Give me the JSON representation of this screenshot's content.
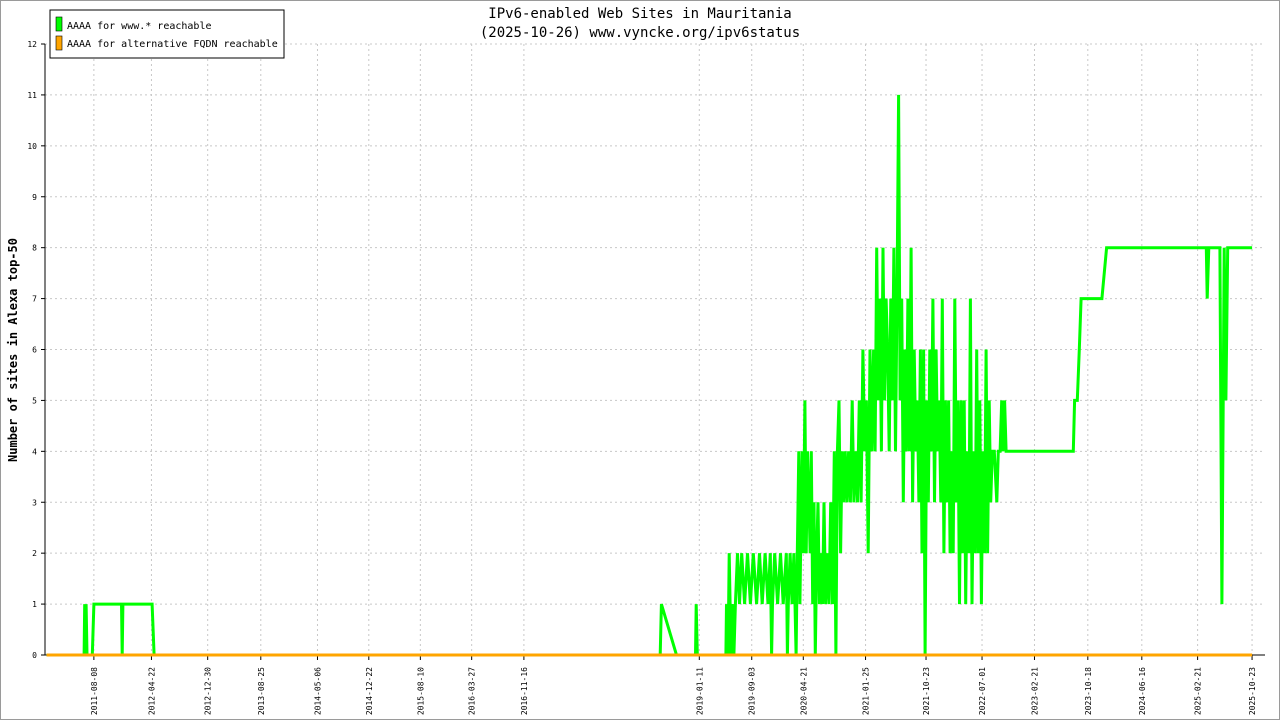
{
  "chart_data": {
    "type": "line",
    "title": "IPv6-enabled Web Sites in Mauritania",
    "subtitle": "(2025-10-26) www.vyncke.org/ipv6status",
    "ylabel": "Number of sites in Alexa top-50",
    "xlabel": "",
    "ylim": [
      0,
      12
    ],
    "yticks": [
      "0",
      "1",
      "2",
      "3",
      "4",
      "5",
      "6",
      "7",
      "8",
      "9",
      "10",
      "11",
      "12"
    ],
    "grid": true,
    "legend_position": "top-left",
    "xlim": [
      "2011-01-01",
      "2025-12-20"
    ],
    "xticks": [
      "2011-08-08",
      "2012-04-22",
      "2012-12-30",
      "2013-08-25",
      "2014-05-06",
      "2014-12-22",
      "2015-08-10",
      "2016-03-27",
      "2016-11-16",
      "2019-01-11",
      "2019-09-03",
      "2020-04-21",
      "2021-01-25",
      "2021-10-23",
      "2022-07-01",
      "2023-02-21",
      "2023-10-18",
      "2024-06-16",
      "2025-02-21",
      "2025-10-23"
    ],
    "series": [
      {
        "name": "AAAA for www.* reachable",
        "color": "#00ff00",
        "points": [
          [
            "2011-01-08",
            0
          ],
          [
            "2011-06-25",
            0
          ],
          [
            "2011-06-28",
            1
          ],
          [
            "2011-07-01",
            0
          ],
          [
            "2011-07-04",
            1
          ],
          [
            "2011-07-08",
            0
          ],
          [
            "2011-08-01",
            0
          ],
          [
            "2011-08-08",
            1
          ],
          [
            "2011-12-10",
            1
          ],
          [
            "2011-12-13",
            0
          ],
          [
            "2011-12-16",
            1
          ],
          [
            "2012-04-25",
            1
          ],
          [
            "2012-05-04",
            0
          ],
          [
            "2018-07-20",
            0
          ],
          [
            "2018-07-25",
            1
          ],
          [
            "2018-10-01",
            0
          ],
          [
            "2018-12-25",
            0
          ],
          [
            "2018-12-28",
            1
          ],
          [
            "2019-01-02",
            0
          ],
          [
            "2019-05-10",
            0
          ],
          [
            "2019-05-13",
            1
          ],
          [
            "2019-05-20",
            0
          ],
          [
            "2019-05-25",
            2
          ],
          [
            "2019-06-02",
            0
          ],
          [
            "2019-06-08",
            1
          ],
          [
            "2019-06-15",
            0
          ],
          [
            "2019-06-22",
            1
          ],
          [
            "2019-07-01",
            2
          ],
          [
            "2019-07-10",
            1
          ],
          [
            "2019-07-20",
            2
          ],
          [
            "2019-08-02",
            1
          ],
          [
            "2019-08-15",
            2
          ],
          [
            "2019-08-28",
            1
          ],
          [
            "2019-09-10",
            2
          ],
          [
            "2019-09-25",
            1
          ],
          [
            "2019-10-08",
            2
          ],
          [
            "2019-10-20",
            1
          ],
          [
            "2019-11-02",
            2
          ],
          [
            "2019-11-15",
            1
          ],
          [
            "2019-11-25",
            2
          ],
          [
            "2019-12-01",
            0
          ],
          [
            "2019-12-05",
            1
          ],
          [
            "2019-12-15",
            2
          ],
          [
            "2019-12-28",
            1
          ],
          [
            "2020-01-10",
            2
          ],
          [
            "2020-01-22",
            1
          ],
          [
            "2020-02-05",
            2
          ],
          [
            "2020-02-10",
            0
          ],
          [
            "2020-02-14",
            1
          ],
          [
            "2020-02-22",
            2
          ],
          [
            "2020-03-02",
            1
          ],
          [
            "2020-03-10",
            2
          ],
          [
            "2020-03-20",
            0
          ],
          [
            "2020-03-25",
            2
          ],
          [
            "2020-04-01",
            4
          ],
          [
            "2020-04-06",
            1
          ],
          [
            "2020-04-12",
            3
          ],
          [
            "2020-04-16",
            4
          ],
          [
            "2020-04-21",
            2
          ],
          [
            "2020-04-28",
            5
          ],
          [
            "2020-05-04",
            2
          ],
          [
            "2020-05-10",
            4
          ],
          [
            "2020-05-16",
            3
          ],
          [
            "2020-05-22",
            2
          ],
          [
            "2020-05-27",
            4
          ],
          [
            "2020-06-02",
            1
          ],
          [
            "2020-06-08",
            3
          ],
          [
            "2020-06-14",
            0
          ],
          [
            "2020-06-20",
            2
          ],
          [
            "2020-06-26",
            3
          ],
          [
            "2020-07-02",
            1
          ],
          [
            "2020-07-09",
            2
          ],
          [
            "2020-07-16",
            1
          ],
          [
            "2020-07-23",
            3
          ],
          [
            "2020-07-30",
            1
          ],
          [
            "2020-08-06",
            2
          ],
          [
            "2020-08-14",
            1
          ],
          [
            "2020-08-22",
            3
          ],
          [
            "2020-08-30",
            1
          ],
          [
            "2020-09-07",
            4
          ],
          [
            "2020-09-14",
            0
          ],
          [
            "2020-09-21",
            4
          ],
          [
            "2020-09-28",
            5
          ],
          [
            "2020-10-05",
            2
          ],
          [
            "2020-10-12",
            4
          ],
          [
            "2020-10-19",
            3
          ],
          [
            "2020-10-26",
            4
          ],
          [
            "2020-11-03",
            3
          ],
          [
            "2020-11-10",
            4
          ],
          [
            "2020-11-18",
            3
          ],
          [
            "2020-11-26",
            5
          ],
          [
            "2020-12-04",
            3
          ],
          [
            "2020-12-12",
            4
          ],
          [
            "2020-12-20",
            3
          ],
          [
            "2020-12-28",
            5
          ],
          [
            "2021-01-05",
            3
          ],
          [
            "2021-01-13",
            6
          ],
          [
            "2021-01-21",
            4
          ],
          [
            "2021-01-29",
            5
          ],
          [
            "2021-02-06",
            2
          ],
          [
            "2021-02-14",
            6
          ],
          [
            "2021-02-22",
            4
          ],
          [
            "2021-03-02",
            6
          ],
          [
            "2021-03-09",
            4
          ],
          [
            "2021-03-16",
            8
          ],
          [
            "2021-03-23",
            5
          ],
          [
            "2021-03-30",
            7
          ],
          [
            "2021-04-06",
            4
          ],
          [
            "2021-04-13",
            8
          ],
          [
            "2021-04-20",
            5
          ],
          [
            "2021-04-27",
            7
          ],
          [
            "2021-05-04",
            6
          ],
          [
            "2021-05-11",
            4
          ],
          [
            "2021-05-18",
            7
          ],
          [
            "2021-05-25",
            5
          ],
          [
            "2021-06-01",
            8
          ],
          [
            "2021-06-08",
            4
          ],
          [
            "2021-06-15",
            7
          ],
          [
            "2021-06-22",
            11
          ],
          [
            "2021-06-29",
            5
          ],
          [
            "2021-07-06",
            7
          ],
          [
            "2021-07-13",
            3
          ],
          [
            "2021-07-20",
            6
          ],
          [
            "2021-07-27",
            4
          ],
          [
            "2021-08-03",
            7
          ],
          [
            "2021-08-10",
            4
          ],
          [
            "2021-08-17",
            8
          ],
          [
            "2021-08-24",
            3
          ],
          [
            "2021-08-31",
            6
          ],
          [
            "2021-09-07",
            4
          ],
          [
            "2021-09-14",
            5
          ],
          [
            "2021-09-21",
            3
          ],
          [
            "2021-09-28",
            6
          ],
          [
            "2021-10-05",
            2
          ],
          [
            "2021-10-12",
            6
          ],
          [
            "2021-10-19",
            0
          ],
          [
            "2021-10-26",
            5
          ],
          [
            "2021-11-02",
            3
          ],
          [
            "2021-11-09",
            6
          ],
          [
            "2021-11-16",
            4
          ],
          [
            "2021-11-23",
            7
          ],
          [
            "2021-11-30",
            3
          ],
          [
            "2021-12-07",
            6
          ],
          [
            "2021-12-14",
            4
          ],
          [
            "2021-12-21",
            5
          ],
          [
            "2021-12-28",
            3
          ],
          [
            "2022-01-04",
            7
          ],
          [
            "2022-01-11",
            2
          ],
          [
            "2022-01-18",
            5
          ],
          [
            "2022-01-25",
            3
          ],
          [
            "2022-02-01",
            5
          ],
          [
            "2022-02-08",
            2
          ],
          [
            "2022-02-15",
            4
          ],
          [
            "2022-02-22",
            2
          ],
          [
            "2022-03-01",
            7
          ],
          [
            "2022-03-08",
            3
          ],
          [
            "2022-03-15",
            5
          ],
          [
            "2022-03-22",
            1
          ],
          [
            "2022-03-29",
            5
          ],
          [
            "2022-04-05",
            2
          ],
          [
            "2022-04-12",
            5
          ],
          [
            "2022-04-19",
            1
          ],
          [
            "2022-04-26",
            4
          ],
          [
            "2022-05-03",
            2
          ],
          [
            "2022-05-10",
            7
          ],
          [
            "2022-05-17",
            1
          ],
          [
            "2022-05-24",
            4
          ],
          [
            "2022-05-31",
            2
          ],
          [
            "2022-06-07",
            6
          ],
          [
            "2022-06-14",
            2
          ],
          [
            "2022-06-21",
            5
          ],
          [
            "2022-06-28",
            1
          ],
          [
            "2022-07-05",
            4
          ],
          [
            "2022-07-12",
            2
          ],
          [
            "2022-07-19",
            6
          ],
          [
            "2022-07-26",
            2
          ],
          [
            "2022-08-02",
            5
          ],
          [
            "2022-08-09",
            3
          ],
          [
            "2022-08-16",
            4
          ],
          [
            "2022-08-25",
            4
          ],
          [
            "2022-09-05",
            3
          ],
          [
            "2022-09-12",
            4
          ],
          [
            "2022-09-20",
            4
          ],
          [
            "2022-09-27",
            5
          ],
          [
            "2022-10-03",
            4
          ],
          [
            "2022-10-10",
            5
          ],
          [
            "2022-10-17",
            4
          ],
          [
            "2022-11-01",
            4
          ],
          [
            "2023-01-01",
            4
          ],
          [
            "2023-03-01",
            4
          ],
          [
            "2023-05-01",
            4
          ],
          [
            "2023-08-14",
            4
          ],
          [
            "2023-08-20",
            5
          ],
          [
            "2023-09-01",
            5
          ],
          [
            "2023-09-10",
            6
          ],
          [
            "2023-09-18",
            7
          ],
          [
            "2023-12-20",
            7
          ],
          [
            "2024-01-10",
            8
          ],
          [
            "2025-04-01",
            8
          ],
          [
            "2025-04-05",
            7
          ],
          [
            "2025-04-12",
            8
          ],
          [
            "2025-06-01",
            8
          ],
          [
            "2025-06-10",
            1
          ],
          [
            "2025-06-20",
            8
          ],
          [
            "2025-06-28",
            5
          ],
          [
            "2025-07-06",
            8
          ],
          [
            "2025-10-23",
            8
          ]
        ]
      },
      {
        "name": "AAAA for alternative FQDN reachable",
        "color": "#ffa500",
        "points": [
          [
            "2011-01-08",
            0
          ],
          [
            "2025-10-23",
            0
          ]
        ]
      }
    ]
  }
}
